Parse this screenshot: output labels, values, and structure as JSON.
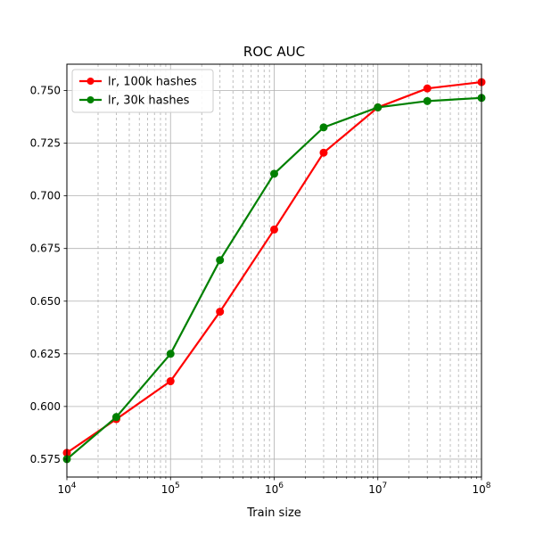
{
  "chart_data": {
    "type": "line",
    "title": "ROC AUC",
    "xlabel": "Train size",
    "ylabel": "",
    "xscale": "log",
    "xlim": [
      10000,
      100000000
    ],
    "ylim": [
      0.5665,
      0.7625
    ],
    "x_ticks": [
      {
        "value": 10000,
        "base": "10",
        "exp": "4"
      },
      {
        "value": 100000,
        "base": "10",
        "exp": "5"
      },
      {
        "value": 1000000,
        "base": "10",
        "exp": "6"
      },
      {
        "value": 10000000,
        "base": "10",
        "exp": "7"
      },
      {
        "value": 100000000,
        "base": "10",
        "exp": "8"
      }
    ],
    "y_ticks": [
      "0.575",
      "0.600",
      "0.625",
      "0.650",
      "0.675",
      "0.700",
      "0.725",
      "0.750"
    ],
    "grid": "major solid, minor dashed",
    "legend_position": "top-left",
    "series": [
      {
        "name": "lr, 100k hashes",
        "color": "#ff0000",
        "x": [
          10000,
          30000,
          100000,
          300000,
          1000000,
          3000000,
          10000000,
          30000000,
          100000000
        ],
        "y": [
          0.578,
          0.594,
          0.612,
          0.645,
          0.684,
          0.7205,
          0.742,
          0.751,
          0.754
        ]
      },
      {
        "name": "lr, 30k hashes",
        "color": "#008000",
        "x": [
          10000,
          30000,
          100000,
          300000,
          1000000,
          3000000,
          10000000,
          30000000,
          100000000
        ],
        "y": [
          0.575,
          0.595,
          0.625,
          0.6695,
          0.7105,
          0.7325,
          0.742,
          0.745,
          0.7465
        ]
      }
    ]
  }
}
